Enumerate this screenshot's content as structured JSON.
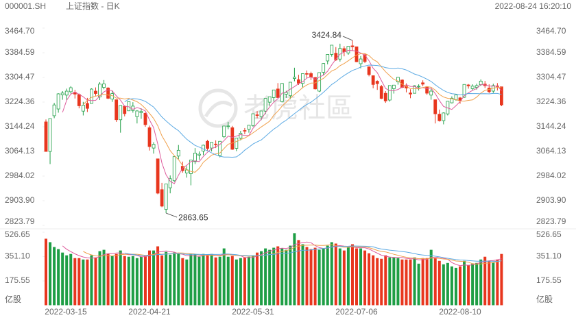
{
  "header": {
    "symbol": "000001.SH",
    "name": "上证指数 - 日K",
    "timestamp": "2022-08-24 16:20:10",
    "watermark": "老虎社區"
  },
  "chart_data": {
    "type": "candlestick",
    "categories": [
      "2022-03-15",
      null,
      null,
      null,
      null,
      null,
      null,
      null,
      null,
      null,
      null,
      null,
      null,
      null,
      null,
      null,
      null,
      null,
      null,
      null,
      null,
      null,
      null,
      null,
      null,
      "2022-04-21",
      null,
      null,
      null,
      null,
      null,
      null,
      null,
      null,
      null,
      null,
      null,
      null,
      null,
      null,
      null,
      null,
      null,
      null,
      null,
      null,
      null,
      null,
      null,
      null,
      "2022-05-31",
      null,
      null,
      null,
      null,
      null,
      null,
      null,
      null,
      null,
      null,
      null,
      null,
      null,
      null,
      null,
      null,
      null,
      null,
      null,
      null,
      null,
      null,
      null,
      null,
      "2022-07-06",
      null,
      null,
      null,
      null,
      null,
      null,
      null,
      null,
      null,
      null,
      null,
      null,
      null,
      null,
      null,
      null,
      null,
      null,
      null,
      null,
      null,
      null,
      null,
      null,
      "2022-08-10",
      null,
      null,
      null,
      null,
      null,
      null,
      null,
      null,
      null,
      null
    ],
    "open": [
      3160,
      3064,
      3180,
      3202,
      3248,
      3247,
      3258,
      3256,
      3249,
      3195,
      3220,
      3220,
      3260,
      3241,
      3272,
      3270,
      3234,
      3232,
      3167,
      3211,
      3196,
      3197,
      3177,
      3190,
      3188,
      3141,
      3075,
      3040,
      2940,
      2876,
      2946,
      2969,
      3049,
      3016,
      2994,
      2992,
      3031,
      3052,
      3065,
      3097,
      3075,
      3088,
      3051,
      3112,
      3146,
      3141,
      3074,
      3107,
      3132,
      3136,
      3148,
      3183,
      3177,
      3195,
      3224,
      3239,
      3267,
      3226,
      3250,
      3245,
      3301,
      3297,
      3285,
      3317,
      3317,
      3304,
      3260,
      3321,
      3358,
      3379,
      3383,
      3364,
      3398,
      3384,
      3407,
      3404,
      3349,
      3378,
      3339,
      3310,
      3292,
      3275,
      3253,
      3231,
      3268,
      3290,
      3296,
      3276,
      3254,
      3253,
      3275,
      3287,
      3274,
      3247,
      3232,
      3185,
      3164,
      3186,
      3222,
      3232,
      3238,
      3240,
      3280,
      3268,
      3272,
      3281,
      3283,
      3270,
      3260,
      3277,
      3274
    ],
    "high": [
      3168,
      3171,
      3222,
      3253,
      3260,
      3268,
      3276,
      3264,
      3252,
      3225,
      3238,
      3269,
      3272,
      3289,
      3296,
      3273,
      3262,
      3232,
      3214,
      3213,
      3226,
      3224,
      3198,
      3204,
      3190,
      3148,
      3094,
      3040,
      2962,
      2958,
      2986,
      3047,
      3085,
      3031,
      3016,
      3036,
      3075,
      3064,
      3086,
      3102,
      3094,
      3100,
      3097,
      3146,
      3160,
      3147,
      3108,
      3131,
      3140,
      3150,
      3187,
      3195,
      3196,
      3236,
      3242,
      3264,
      3286,
      3286,
      3261,
      3289,
      3336,
      3313,
      3317,
      3327,
      3323,
      3306,
      3320,
      3351,
      3380,
      3410,
      3403,
      3414,
      3406,
      3406,
      3424.84,
      3404,
      3374,
      3382,
      3339,
      3311,
      3295,
      3280,
      3260,
      3278,
      3280,
      3306,
      3298,
      3285,
      3266,
      3279,
      3282,
      3295,
      3276,
      3267,
      3232,
      3200,
      3191,
      3227,
      3243,
      3248,
      3241,
      3282,
      3283,
      3282,
      3284,
      3298,
      3293,
      3282,
      3284,
      3286,
      3274
    ],
    "low": [
      3063,
      3023,
      3172,
      3190,
      3232,
      3231,
      3252,
      3236,
      3204,
      3181,
      3192,
      3220,
      3245,
      3231,
      3266,
      3234,
      3225,
      3160,
      3125,
      3178,
      3196,
      3190,
      3155,
      3170,
      3144,
      3067,
      3057,
      2925,
      2883,
      2863.65,
      2928,
      2965,
      3039,
      2995,
      2979,
      2954,
      3023,
      3037,
      3052,
      3067,
      3064,
      3075,
      3045,
      3107,
      3136,
      3069,
      3065,
      3100,
      3120,
      3125,
      3144,
      3172,
      3166,
      3185,
      3212,
      3226,
      3238,
      3223,
      3238,
      3234,
      3292,
      3280,
      3270,
      3303,
      3296,
      3265,
      3257,
      3312,
      3347,
      3372,
      3358,
      3356,
      3373,
      3378,
      3391,
      3354,
      3334,
      3351,
      3308,
      3269,
      3264,
      3234,
      3222,
      3226,
      3252,
      3281,
      3270,
      3256,
      3237,
      3253,
      3262,
      3276,
      3248,
      3232,
      3155,
      3161,
      3152,
      3181,
      3220,
      3229,
      3219,
      3238,
      3268,
      3263,
      3265,
      3277,
      3270,
      3253,
      3254,
      3262,
      3211
    ],
    "close": [
      3063.97,
      3170.71,
      3215.04,
      3251.07,
      3253.69,
      3259.86,
      3271.03,
      3250.26,
      3212.24,
      3214.5,
      3203.94,
      3266.6,
      3252.2,
      3282.72,
      3283.43,
      3236.7,
      3251.85,
      3167.13,
      3213.33,
      3186.82,
      3225.64,
      3211.24,
      3195.52,
      3194.03,
      3151.05,
      3079.81,
      3086.92,
      2928.51,
      2886.43,
      2958.28,
      2975.48,
      3047.06,
      3067.76,
      3001.56,
      3004.14,
      3035.84,
      3058.7,
      3054.99,
      3084.28,
      3073.75,
      3093.7,
      3085.98,
      3096.96,
      3146.57,
      3146.86,
      3070.93,
      3107.46,
      3123.11,
      3130.24,
      3149.06,
      3186.43,
      3182.16,
      3195.46,
      3236.37,
      3241.76,
      3263.79,
      3238.95,
      3284.83,
      3255.55,
      3288.91,
      3305.41,
      3285.38,
      3316.79,
      3315.43,
      3306.72,
      3267.2,
      3320.15,
      3349.75,
      3379.19,
      3409.21,
      3361.52,
      3398.62,
      3387.64,
      3405.43,
      3404.03,
      3355.35,
      3364.4,
      3356.08,
      3313.58,
      3281.47,
      3284.29,
      3236.21,
      3228.06,
      3278.1,
      3279.43,
      3304.72,
      3272,
      3269.97,
      3250.39,
      3277.44,
      3275.76,
      3282.58,
      3253.24,
      3259.96,
      3186.27,
      3163.67,
      3189.04,
      3227.03,
      3236.93,
      3247.43,
      3230.02,
      3281.67,
      3276.89,
      3276.09,
      3277.88,
      3292.53,
      3277.54,
      3258.08,
      3277.79,
      3276.22,
      3215.2
    ],
    "volume": [
      480,
      455,
      420,
      405,
      380,
      360,
      370,
      340,
      340,
      330,
      330,
      360,
      345,
      390,
      400,
      370,
      355,
      370,
      395,
      355,
      350,
      355,
      340,
      350,
      355,
      395,
      395,
      425,
      360,
      385,
      365,
      380,
      370,
      340,
      330,
      370,
      370,
      350,
      370,
      360,
      370,
      345,
      350,
      410,
      350,
      355,
      330,
      340,
      345,
      350,
      360,
      380,
      390,
      410,
      400,
      415,
      425,
      410,
      400,
      430,
      520,
      470,
      440,
      420,
      405,
      415,
      400,
      410,
      430,
      455,
      445,
      410,
      395,
      420,
      440,
      410,
      410,
      395,
      375,
      360,
      340,
      335,
      360,
      345,
      345,
      340,
      330,
      330,
      330,
      345,
      300,
      340,
      340,
      400,
      340,
      320,
      295,
      305,
      280,
      270,
      280,
      320,
      290,
      300,
      305,
      330,
      350,
      320,
      310,
      330,
      370
    ],
    "ylim": [
      2823.79,
      3464.7
    ],
    "yticks": [
      {
        "value": 3464.7,
        "label": "3464.70"
      },
      3384.59,
      3304.47,
      3224.36,
      3144.24,
      3064.13,
      2984.02,
      {
        "value": 2903.9,
        "label": "2903.90"
      },
      2823.79
    ],
    "volume_ylim": [
      0,
      526.65
    ],
    "volume_yticks": [
      526.65,
      {
        "value": 351.1,
        "label": "351.10"
      },
      175.55
    ],
    "volume_unit": "亿股",
    "up_color": "#1e9e45",
    "down_color": "#e8361e",
    "moving_averages": [
      {
        "period": 5,
        "color": "#de5b9c"
      },
      {
        "period": 10,
        "color": "#f0a04b"
      },
      {
        "period": 20,
        "color": "#5aa9e3"
      }
    ]
  }
}
